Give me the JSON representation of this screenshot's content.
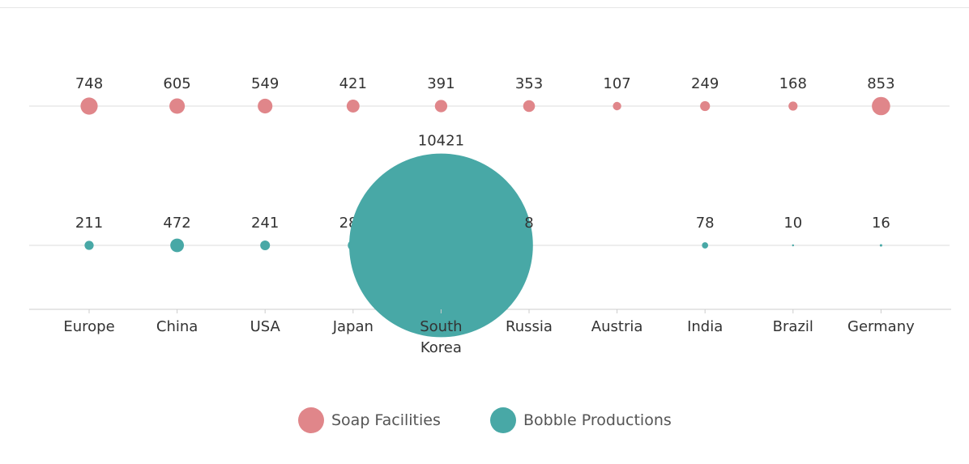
{
  "chart_data": {
    "type": "bubble-strip",
    "categories": [
      "Europe",
      "China",
      "USA",
      "Japan",
      "South Korea",
      "Russia",
      "Austria",
      "India",
      "Brazil",
      "Germany"
    ],
    "series": [
      {
        "name": "Soap Facilities",
        "color": "#e0868a",
        "values": [
          748,
          605,
          549,
          421,
          391,
          353,
          107,
          249,
          168,
          853
        ]
      },
      {
        "name": "Bobble Productions",
        "color": "#48a8a6",
        "values": [
          211,
          472,
          241,
          285,
          10421,
          8,
          null,
          78,
          10,
          16
        ]
      }
    ],
    "grid": false,
    "legend_position": "bottom-center"
  }
}
